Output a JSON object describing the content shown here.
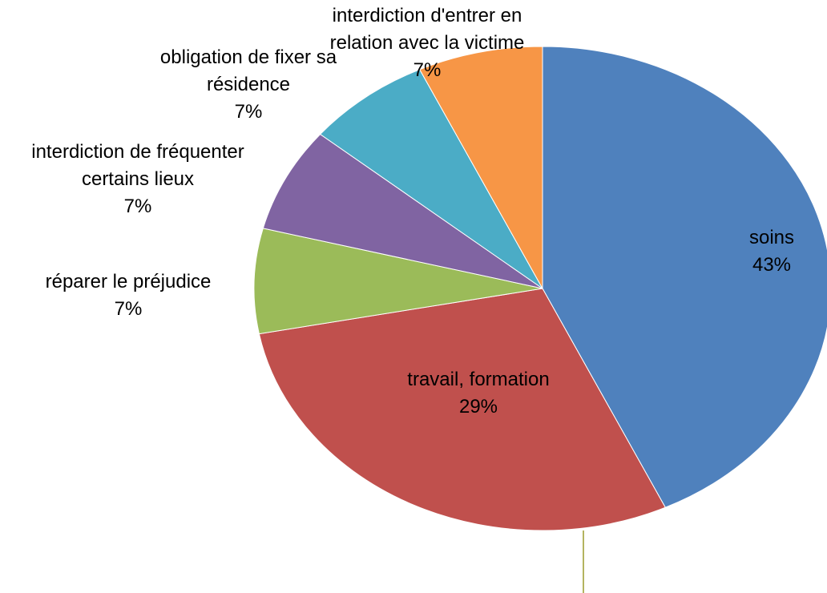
{
  "chart_data": {
    "type": "pie",
    "categories": [
      "soins",
      "travail, formation",
      "réparer le préjudice",
      "interdiction de fréquenter certains lieux",
      "obligation de fixer sa résidence",
      "interdiction d'entrer en relation avec la victime"
    ],
    "values": [
      43,
      29,
      7,
      7,
      7,
      7
    ],
    "value_labels": [
      "43%",
      "29%",
      "7%",
      "7%",
      "7%",
      "7%"
    ],
    "colors": [
      "#4f81bd",
      "#c0504d",
      "#9bbb59",
      "#8064a2",
      "#4bacc6",
      "#f79646"
    ]
  }
}
